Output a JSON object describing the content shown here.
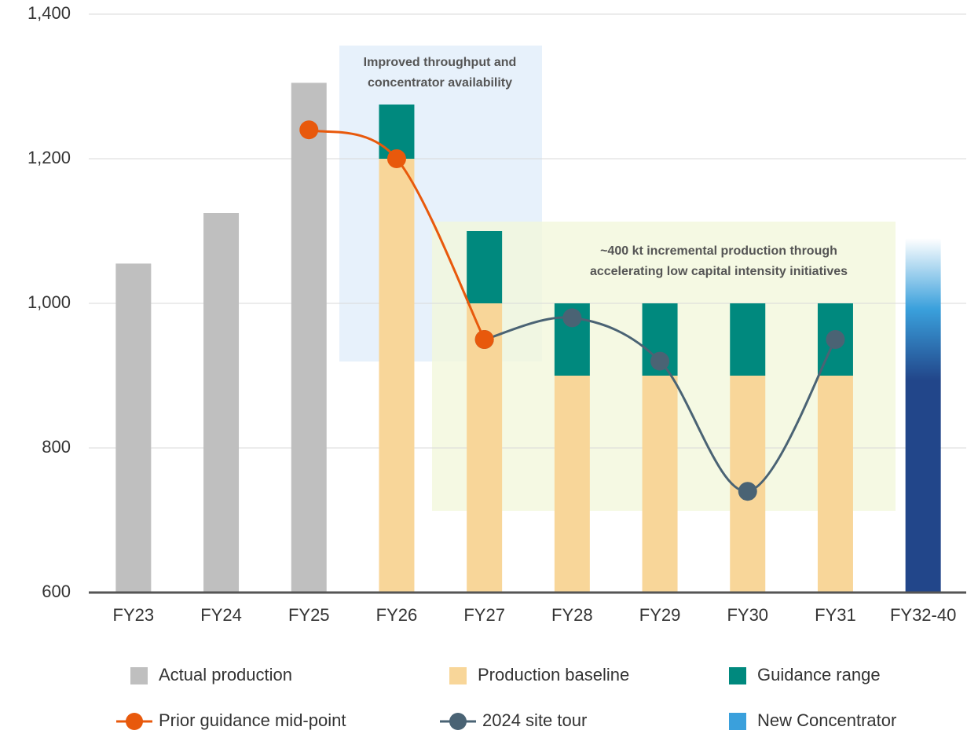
{
  "chart_data": {
    "type": "bar",
    "categories": [
      "FY23",
      "FY24",
      "FY25",
      "FY26",
      "FY27",
      "FY28",
      "FY29",
      "FY30",
      "FY31",
      "FY32-40"
    ],
    "ylim": [
      600,
      1400
    ],
    "yticks": [
      600,
      800,
      {
        "value": 1000,
        "label": "1,000"
      },
      {
        "value": 1200,
        "label": "1,200"
      },
      {
        "value": 1400,
        "label": "1,400"
      }
    ],
    "grid": true,
    "series": [
      {
        "name": "Actual production",
        "type": "bar",
        "color": "#bfbfbf",
        "values": [
          1055,
          1125,
          1305,
          null,
          null,
          null,
          null,
          null,
          null,
          null
        ]
      },
      {
        "name": "Production baseline",
        "type": "bar",
        "color": "#f8d699",
        "values": [
          null,
          null,
          null,
          1200,
          1000,
          900,
          900,
          900,
          900,
          null
        ]
      },
      {
        "name": "Guidance range",
        "type": "bar",
        "color": "#00897e",
        "values": [
          null,
          null,
          null,
          75,
          100,
          100,
          100,
          100,
          100,
          null
        ]
      },
      {
        "name": "Prior guidance mid-point",
        "type": "line",
        "color": "#e8590c",
        "values": [
          null,
          null,
          1240,
          1200,
          950,
          null,
          null,
          null,
          null,
          null
        ]
      },
      {
        "name": "2024 site tour",
        "type": "line",
        "color": "#4a6374",
        "values": [
          null,
          null,
          null,
          null,
          950,
          980,
          920,
          740,
          950,
          null
        ]
      },
      {
        "name": "New Concentrator",
        "type": "bar",
        "color": "#3aa0dc",
        "values": [
          null,
          null,
          null,
          null,
          null,
          null,
          null,
          null,
          null,
          1090
        ]
      }
    ],
    "annotations": [
      [
        "Improved throughput and",
        "concentrator availability"
      ],
      [
        "~400 kt incremental production through",
        "accelerating low capital intensity initiatives"
      ]
    ]
  }
}
